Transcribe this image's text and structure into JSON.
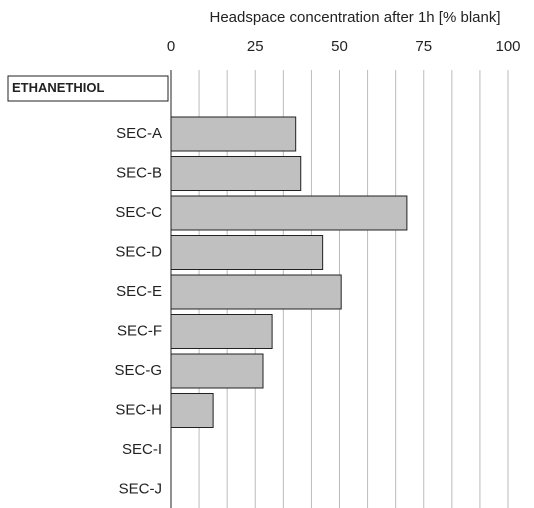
{
  "chart_data": {
    "type": "hbar",
    "title": "Headspace concentration after 1h [% blank]",
    "group_label": "ETHANETHIOL",
    "categories": [
      "SEC-A",
      "SEC-B",
      "SEC-C",
      "SEC-D",
      "SEC-E",
      "SEC-F",
      "SEC-G",
      "SEC-H",
      "SEC-I",
      "SEC-J"
    ],
    "values": [
      37,
      38.5,
      70,
      45,
      50.5,
      30,
      27.3,
      12.5,
      0,
      0
    ],
    "color": "#c0c0c0",
    "xlim": [
      0,
      100
    ],
    "xticks": [
      0,
      25,
      50,
      75,
      100
    ],
    "grid_divisions": 12,
    "grid": true
  }
}
